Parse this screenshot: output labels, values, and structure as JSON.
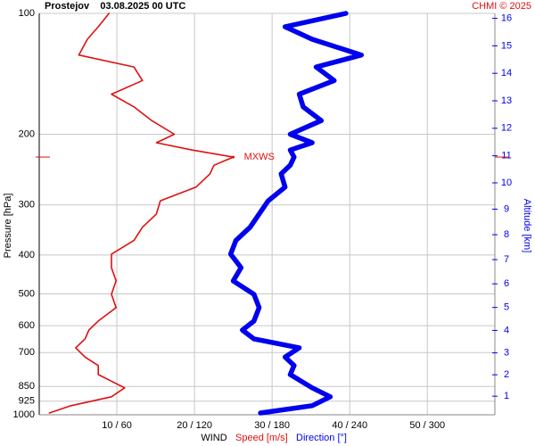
{
  "chart_data": {
    "type": "wind-profile",
    "title": "Prostejov    03.08.2025 00 UTC",
    "source": "CHMI © 2025",
    "ylabel": "Pressure [hPa]",
    "y2label": "Altitude [km]",
    "xlabel": "WIND",
    "log_y": true,
    "grid": true,
    "ylim": [
      100,
      1000
    ],
    "yticks": [
      100,
      200,
      300,
      400,
      500,
      600,
      700,
      850,
      925,
      1000
    ],
    "xlim": [
      0,
      58.7
    ],
    "x2lim": [
      0,
      352.2
    ],
    "xticks": [
      {
        "value": 10,
        "label": "10 / 60"
      },
      {
        "value": 20,
        "label": "20 / 120"
      },
      {
        "value": 30,
        "label": "30 / 180"
      },
      {
        "value": 40,
        "label": "40 / 240"
      },
      {
        "value": 50,
        "label": "50 / 300"
      }
    ],
    "y2ticks": [
      1,
      2,
      3,
      4,
      5,
      6,
      7,
      8,
      9,
      10,
      11,
      12,
      13,
      14,
      15,
      16
    ],
    "pressure": [
      100,
      108,
      116,
      127,
      136,
      147,
      159,
      171,
      185,
      200,
      210,
      219,
      228,
      239,
      251,
      271,
      293,
      316,
      341,
      368,
      398,
      430,
      464,
      501,
      541,
      584,
      615,
      647,
      681,
      718,
      754,
      794,
      857,
      902,
      949,
      990
    ],
    "series": [
      {
        "name": "Speed [m/s]",
        "color": "#e01010",
        "axis": "x",
        "values": [
          9.0,
          7.6,
          6.2,
          5.1,
          12.2,
          13.3,
          9.3,
          12.2,
          14.5,
          17.4,
          15.1,
          19.7,
          25.0,
          22.5,
          22.0,
          20.2,
          15.6,
          15.1,
          13.3,
          12.2,
          9.3,
          9.3,
          9.9,
          9.3,
          9.9,
          7.6,
          6.4,
          5.9,
          4.7,
          5.9,
          7.6,
          7.6,
          11.0,
          9.3,
          4.1,
          1.3
        ]
      },
      {
        "name": "Direction [°]",
        "color": "#0000ee",
        "axis": "x2",
        "values": [
          237,
          190,
          211,
          249,
          214,
          228,
          201,
          204,
          218,
          194,
          211,
          194,
          197,
          194,
          187,
          190,
          177,
          170,
          163,
          152,
          148,
          156,
          150,
          166,
          170,
          166,
          157,
          166,
          201,
          190,
          197,
          194,
          211,
          225,
          211,
          171
        ]
      }
    ],
    "max_wind": {
      "label": "MXWS",
      "pressure": 228,
      "speed": 25.0
    }
  }
}
